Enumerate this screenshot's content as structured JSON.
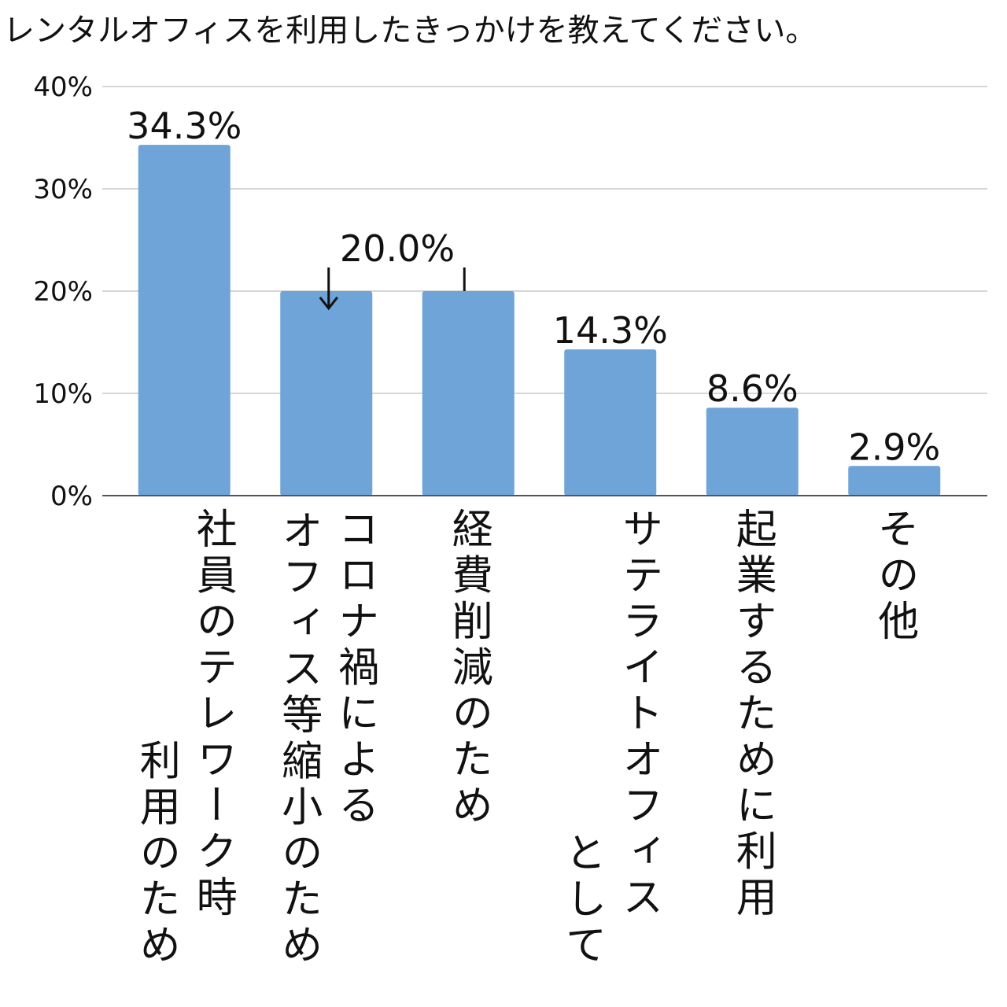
{
  "chart_data": {
    "type": "bar",
    "title": "レンタルオフィスを利用したきっかけを教えてください。",
    "categories": [
      [
        "社員のテレワーク時",
        "利用のため"
      ],
      [
        "コロナ禍による",
        "オフィス等縮小のため"
      ],
      [
        "経費削減のため"
      ],
      [
        "サテライトオフィス",
        "として"
      ],
      [
        "起業するために利用"
      ],
      [
        "その他"
      ]
    ],
    "values": [
      34.3,
      20.0,
      20.0,
      14.3,
      8.6,
      2.9
    ],
    "value_labels": [
      "34.3%",
      "20.0%",
      null,
      "14.3%",
      "8.6%",
      "2.9%"
    ],
    "color": "#6fa4d8",
    "ylim": [
      0,
      40
    ],
    "yticks": [
      {
        "value": 0,
        "label": "0%"
      },
      {
        "value": 10,
        "label": "10%"
      },
      {
        "value": 20,
        "label": "20%"
      },
      {
        "value": 30,
        "label": "30%"
      },
      {
        "value": 40,
        "label": "40%"
      }
    ],
    "grid": true
  }
}
